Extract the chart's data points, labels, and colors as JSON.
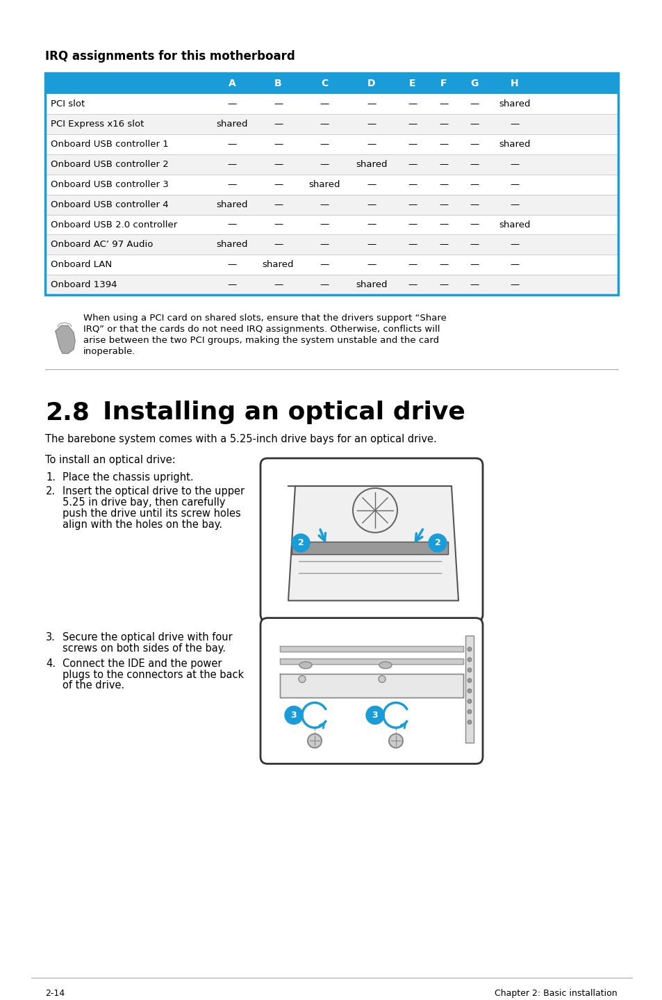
{
  "title_irq": "IRQ assignments for this motherboard",
  "header_bg": "#1a9cd8",
  "header_text_color": "#ffffff",
  "table_border_color": "#1a9cd8",
  "columns": [
    "",
    "A",
    "B",
    "C",
    "D",
    "E",
    "F",
    "G",
    "H"
  ],
  "rows": [
    [
      "PCI slot",
      "—",
      "—",
      "—",
      "—",
      "—",
      "—",
      "—",
      "shared"
    ],
    [
      "PCI Express x16 slot",
      "shared",
      "—",
      "—",
      "—",
      "—",
      "—",
      "—",
      "—"
    ],
    [
      "Onboard USB controller 1",
      "—",
      "—",
      "—",
      "—",
      "—",
      "—",
      "—",
      "shared"
    ],
    [
      "Onboard USB controller 2",
      "—",
      "—",
      "—",
      "shared",
      "—",
      "—",
      "—",
      "—"
    ],
    [
      "Onboard USB controller 3",
      "—",
      "—",
      "shared",
      "—",
      "—",
      "—",
      "—",
      "—"
    ],
    [
      "Onboard USB controller 4",
      "shared",
      "—",
      "—",
      "—",
      "—",
      "—",
      "—",
      "—"
    ],
    [
      "Onboard USB 2.0 controller",
      "—",
      "—",
      "—",
      "—",
      "—",
      "—",
      "—",
      "shared"
    ],
    [
      "Onboard AC’ 97 Audio",
      "shared",
      "—",
      "—",
      "—",
      "—",
      "—",
      "—",
      "—"
    ],
    [
      "Onboard LAN",
      "—",
      "shared",
      "—",
      "—",
      "—",
      "—",
      "—",
      "—"
    ],
    [
      "Onboard 1394",
      "—",
      "—",
      "—",
      "shared",
      "—",
      "—",
      "—",
      "—"
    ]
  ],
  "note_text_lines": [
    "When using a PCI card on shared slots, ensure that the drivers support “Share",
    "IRQ” or that the cards do not need IRQ assignments. Otherwise, conflicts will",
    "arise between the two PCI groups, making the system unstable and the card",
    "inoperable."
  ],
  "section_num": "2.8",
  "section_title": "Installing an optical drive",
  "intro_text": "The barebone system comes with a 5.25-inch drive bays for an optical drive.",
  "install_header": "To install an optical drive:",
  "step1": "Place the chassis upright.",
  "step2_lines": [
    "Insert the optical drive to the upper",
    "5.25 in drive bay, then carefully",
    "push the drive until its screw holes",
    "align with the holes on the bay."
  ],
  "step3_lines": [
    "Secure the optical drive with four",
    "screws on both sides of the bay."
  ],
  "step4_lines": [
    "Connect the IDE and the power",
    "plugs to the connectors at the back",
    "of the drive."
  ],
  "footer_left": "2-14",
  "footer_right": "Chapter 2: Basic installation",
  "page_bg": "#ffffff",
  "text_color": "#000000",
  "blue_color": "#1a9cd8"
}
